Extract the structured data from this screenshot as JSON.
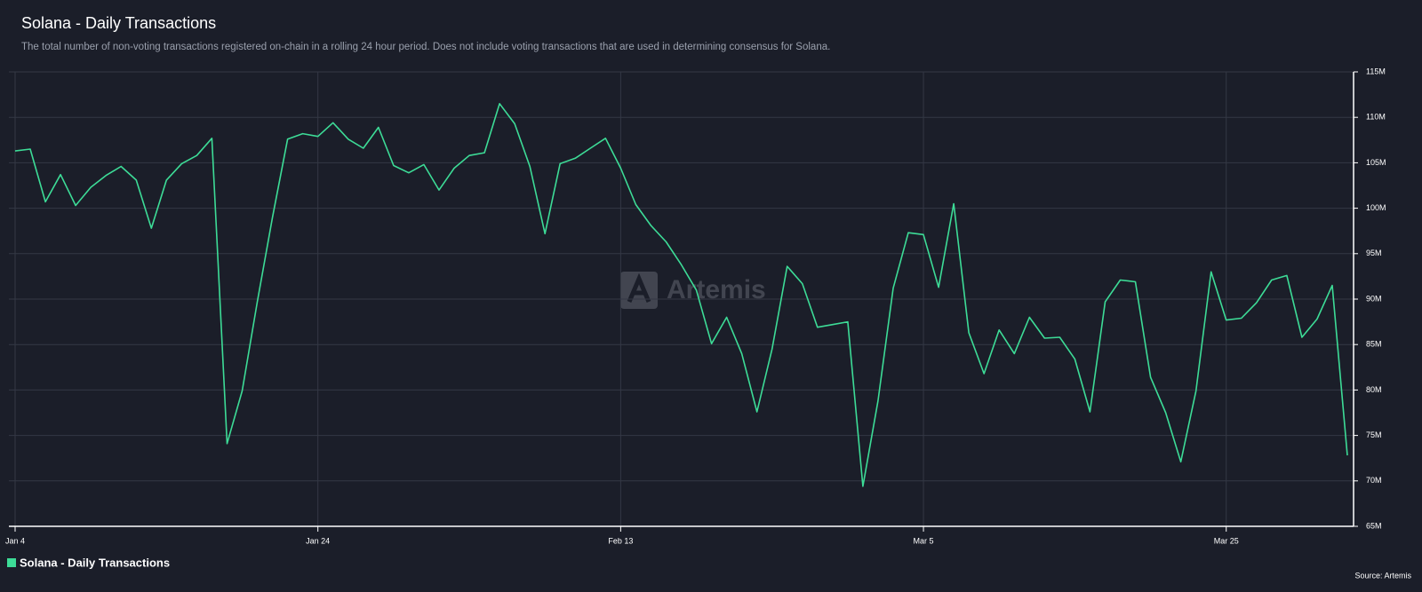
{
  "chart_data": {
    "type": "line",
    "title": "Solana - Daily Transactions",
    "subtitle": "The total number of non-voting transactions registered on-chain in a rolling 24 hour period. Does not include voting transactions that are used in determining consensus for Solana.",
    "source": "Source: Artemis",
    "watermark": "Artemis",
    "categories": [
      "Jan 4",
      null,
      null,
      null,
      null,
      null,
      null,
      null,
      null,
      null,
      null,
      null,
      null,
      null,
      null,
      null,
      null,
      null,
      null,
      null,
      "Jan 24",
      null,
      null,
      null,
      null,
      null,
      null,
      null,
      null,
      null,
      null,
      null,
      null,
      null,
      null,
      null,
      null,
      null,
      null,
      null,
      "Feb 13",
      null,
      null,
      null,
      null,
      null,
      null,
      null,
      null,
      null,
      null,
      null,
      null,
      null,
      null,
      null,
      null,
      null,
      null,
      null,
      "Mar 5",
      null,
      null,
      null,
      null,
      null,
      null,
      null,
      null,
      null,
      null,
      null,
      null,
      null,
      null,
      null,
      null,
      null,
      null,
      null,
      "Mar 25",
      null,
      null,
      null,
      null,
      null,
      null,
      null,
      null
    ],
    "series": [
      {
        "name": "Solana - Daily Transactions",
        "color": "#3ddc97",
        "values": [
          106.3,
          106.5,
          100.7,
          103.7,
          100.3,
          102.3,
          103.6,
          104.6,
          103.1,
          97.8,
          103.1,
          104.9,
          105.8,
          107.7,
          74.1,
          79.9,
          89.7,
          99.0,
          107.6,
          108.2,
          107.9,
          109.4,
          107.6,
          106.6,
          108.9,
          104.7,
          103.9,
          104.8,
          102.0,
          104.4,
          105.8,
          106.1,
          111.5,
          109.3,
          104.6,
          97.2,
          104.9,
          105.5,
          106.6,
          107.7,
          104.4,
          100.4,
          98.1,
          96.3,
          93.8,
          91.0,
          85.1,
          88.0,
          84.0,
          77.6,
          84.5,
          93.6,
          91.7,
          86.9,
          87.2,
          87.5,
          69.4,
          78.8,
          91.2,
          97.3,
          97.1,
          91.3,
          100.5,
          86.3,
          81.8,
          86.6,
          84.0,
          88.0,
          85.7,
          85.8,
          83.4,
          77.6,
          89.7,
          92.1,
          91.9,
          81.4,
          77.5,
          72.1,
          79.9,
          93.0,
          87.7,
          87.9,
          89.6,
          92.1,
          92.6,
          85.8,
          87.8,
          91.5,
          72.8
        ]
      }
    ],
    "ylim": [
      65,
      115
    ],
    "yticks": [
      {
        "value": 65,
        "label": "65M"
      },
      {
        "value": 70,
        "label": "70M"
      },
      {
        "value": 75,
        "label": "75M"
      },
      {
        "value": 80,
        "label": "80M"
      },
      {
        "value": 85,
        "label": "85M"
      },
      {
        "value": 90,
        "label": "90M"
      },
      {
        "value": 95,
        "label": "95M"
      },
      {
        "value": 100,
        "label": "100M"
      },
      {
        "value": 105,
        "label": "105M"
      },
      {
        "value": 110,
        "label": "110M"
      },
      {
        "value": 115,
        "label": "115M"
      }
    ],
    "grid": true
  }
}
